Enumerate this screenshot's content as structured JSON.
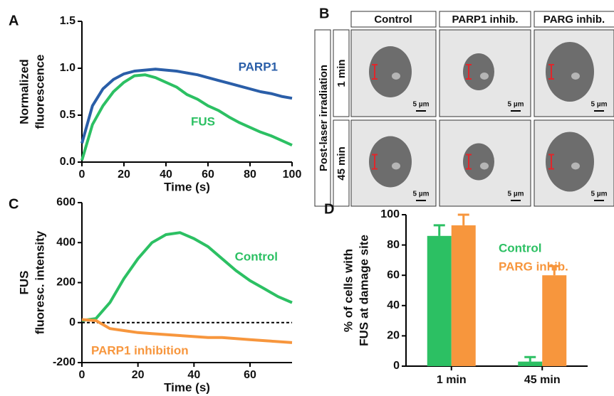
{
  "chart_data": [
    {
      "type": "line",
      "panel": "A",
      "xlabel": "Time (s)",
      "ylabel": [
        "Normalized",
        "fluorescence"
      ],
      "x": [
        0,
        5,
        10,
        15,
        20,
        25,
        30,
        35,
        40,
        45,
        50,
        55,
        60,
        65,
        70,
        75,
        80,
        85,
        90,
        95,
        100
      ],
      "series": [
        {
          "name": "PARP1",
          "color": "#2a5ea8",
          "values": [
            0.2,
            0.6,
            0.78,
            0.88,
            0.94,
            0.97,
            0.98,
            0.99,
            0.98,
            0.97,
            0.95,
            0.93,
            0.9,
            0.87,
            0.84,
            0.81,
            0.78,
            0.75,
            0.73,
            0.7,
            0.68
          ]
        },
        {
          "name": "FUS",
          "color": "#2cc063",
          "values": [
            0.02,
            0.4,
            0.6,
            0.75,
            0.85,
            0.92,
            0.93,
            0.9,
            0.85,
            0.8,
            0.72,
            0.67,
            0.6,
            0.55,
            0.48,
            0.42,
            0.37,
            0.32,
            0.28,
            0.23,
            0.18
          ]
        }
      ],
      "xlim": [
        0,
        100
      ],
      "xticks": [
        0,
        20,
        40,
        60,
        80,
        100
      ],
      "ylim": [
        0,
        1.5
      ],
      "yticks": [
        {
          "value": 0,
          "label": "0.0"
        },
        0.5,
        {
          "value": 1,
          "label": "1.0"
        },
        1.5
      ]
    },
    {
      "type": "line",
      "panel": "C",
      "xlabel": "Time (s)",
      "ylabel": [
        "FUS",
        "fluoresc. intensity"
      ],
      "x": [
        0,
        5,
        10,
        15,
        20,
        25,
        30,
        35,
        40,
        45,
        50,
        55,
        60,
        65,
        70,
        75
      ],
      "series": [
        {
          "name": "Control",
          "color": "#2cc063",
          "values": [
            10,
            20,
            100,
            220,
            320,
            400,
            440,
            450,
            420,
            380,
            320,
            260,
            210,
            170,
            130,
            100
          ]
        },
        {
          "name": "PARP1 inhibition",
          "color": "#f7963d",
          "values": [
            15,
            10,
            -30,
            -40,
            -50,
            -55,
            -60,
            -65,
            -70,
            -75,
            -75,
            -80,
            -85,
            -90,
            -95,
            -100
          ]
        }
      ],
      "xlim": [
        0,
        75
      ],
      "xticks": [
        0,
        20,
        40,
        60
      ],
      "ylim": [
        -200,
        600
      ],
      "yticks": [
        -200,
        0,
        200,
        400,
        600
      ]
    },
    {
      "type": "bar",
      "panel": "D",
      "ylabel": [
        "% of cells with",
        "FUS  at damage site"
      ],
      "categories": [
        "1 min",
        "45 min"
      ],
      "series": [
        {
          "name": "Control",
          "color": "#2cc063",
          "values": [
            86,
            3
          ],
          "errors": [
            7,
            3
          ]
        },
        {
          "name": "PARG inhib.",
          "color": "#f7963d",
          "values": [
            93,
            60
          ],
          "errors": [
            7,
            6
          ]
        }
      ],
      "ylim": [
        0,
        100
      ],
      "yticks": [
        0,
        20,
        40,
        60,
        80,
        100
      ]
    }
  ],
  "images": {
    "panel": "B",
    "columns": [
      "Control",
      "PARP1 inhib.",
      "PARG inhib."
    ],
    "group_label": "Post-laser irradiation",
    "rows": [
      "1 min",
      "45 min"
    ],
    "scale_bar": "5 µm"
  }
}
